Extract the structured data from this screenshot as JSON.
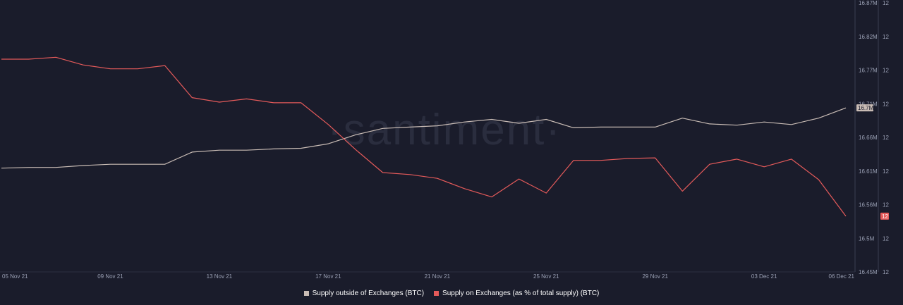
{
  "watermark": "·santiment·",
  "legend": {
    "outside_label": "Supply outside of Exchanges (BTC)",
    "on_label": "Supply on Exchanges (as % of total supply) (BTC)"
  },
  "colors": {
    "background": "#1a1c2b",
    "outside": "#c9bcb5",
    "on": "#e45a5a",
    "axis": "#9aa0b4"
  },
  "chart_data": {
    "type": "line",
    "x": [
      "05 Nov 21",
      "06 Nov 21",
      "07 Nov 21",
      "08 Nov 21",
      "09 Nov 21",
      "10 Nov 21",
      "11 Nov 21",
      "12 Nov 21",
      "13 Nov 21",
      "14 Nov 21",
      "15 Nov 21",
      "16 Nov 21",
      "17 Nov 21",
      "18 Nov 21",
      "19 Nov 21",
      "20 Nov 21",
      "21 Nov 21",
      "22 Nov 21",
      "23 Nov 21",
      "24 Nov 21",
      "25 Nov 21",
      "26 Nov 21",
      "27 Nov 21",
      "28 Nov 21",
      "29 Nov 21",
      "30 Nov 21",
      "01 Dec 21",
      "02 Dec 21",
      "03 Dec 21",
      "04 Dec 21",
      "05 Dec 21",
      "06 Dec 21"
    ],
    "x_ticks": [
      "05 Nov 21",
      "09 Nov 21",
      "13 Nov 21",
      "17 Nov 21",
      "21 Nov 21",
      "25 Nov 21",
      "29 Nov 21",
      "03 Dec 21",
      "06 Dec 21"
    ],
    "y_ticks_left": [
      "16.87M",
      "16.82M",
      "16.77M",
      "16.71M",
      "16.66M",
      "16.61M",
      "16.56M",
      "16.5M",
      "16.45M"
    ],
    "y_ticks_right": [
      "12",
      "12",
      "12",
      "12",
      "12",
      "12",
      "12",
      "12",
      "12"
    ],
    "ylim": [
      16.45,
      16.87
    ],
    "series": [
      {
        "name": "Supply outside of Exchanges (BTC)",
        "axis": "left",
        "current_label": "16.7M",
        "values": [
          16.612,
          16.613,
          16.613,
          16.616,
          16.618,
          16.618,
          16.618,
          16.637,
          16.64,
          16.64,
          16.642,
          16.643,
          16.65,
          16.664,
          16.674,
          16.676,
          16.678,
          16.684,
          16.688,
          16.682,
          16.688,
          16.675,
          16.676,
          16.676,
          16.676,
          16.69,
          16.681,
          16.679,
          16.684,
          16.68,
          16.69,
          16.706
        ]
      },
      {
        "name": "Supply on Exchanges (as % of total supply) (BTC)",
        "axis": "right",
        "current_label": "12",
        "values": [
          16.782,
          16.782,
          16.785,
          16.773,
          16.767,
          16.767,
          16.772,
          16.722,
          16.715,
          16.72,
          16.714,
          16.714,
          16.68,
          16.641,
          16.605,
          16.602,
          16.596,
          16.58,
          16.567,
          16.595,
          16.573,
          16.624,
          16.624,
          16.627,
          16.628,
          16.576,
          16.618,
          16.626,
          16.614,
          16.626,
          16.594,
          16.537
        ]
      }
    ]
  }
}
